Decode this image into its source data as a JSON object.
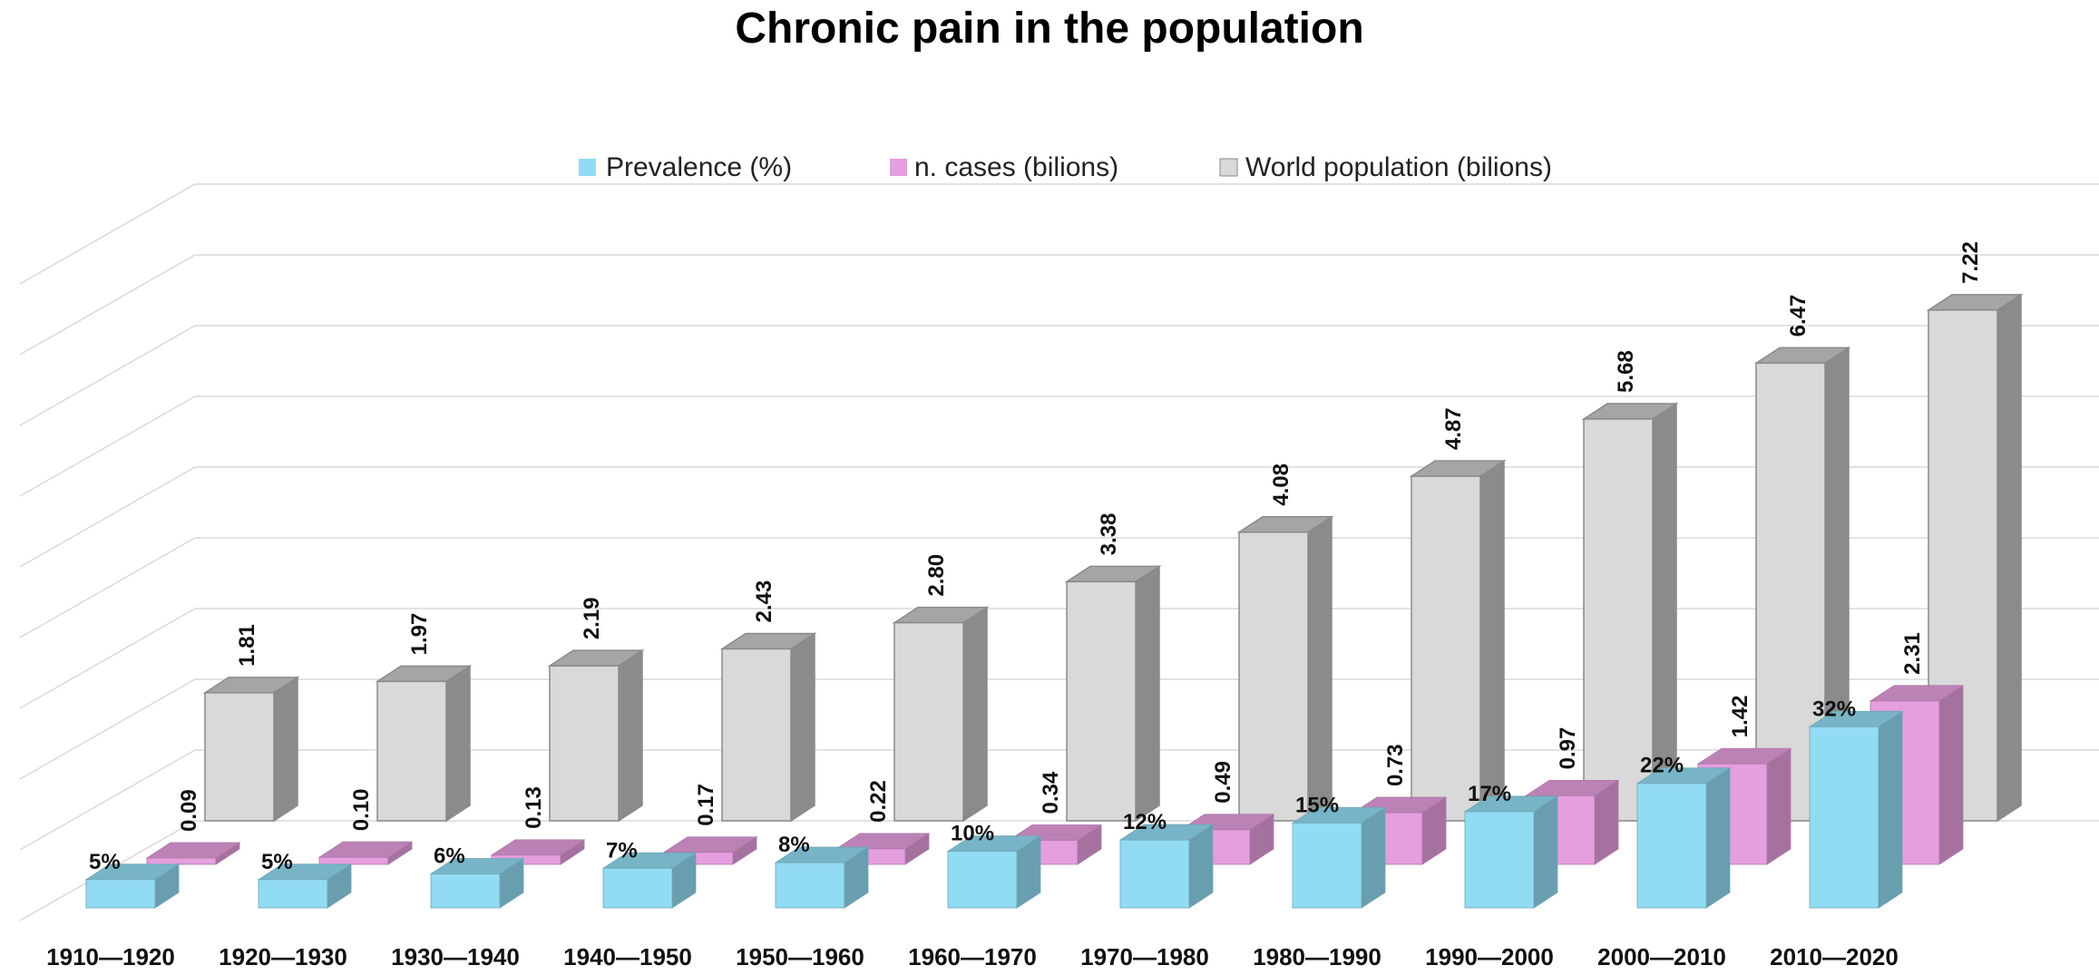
{
  "colors": {
    "prevalence": "#92dcf3",
    "cases": "#e59ede",
    "population": "#d9d9d9"
  },
  "chart_data": {
    "type": "bar",
    "variant": "3d-column",
    "title": "Chronic pain in the population",
    "legend_position": "top",
    "grid": true,
    "categories": [
      "1910—1920",
      "1920—1930",
      "1930—1940",
      "1940—1950",
      "1950—1960",
      "1960—1970",
      "1970—1980",
      "1980—1990",
      "1990—2000",
      "2000—2010",
      "2010—2020"
    ],
    "series": [
      {
        "name": "Prevalence (%)",
        "values": [
          5,
          5,
          6,
          7,
          8,
          10,
          12,
          15,
          17,
          22,
          32
        ],
        "labels": [
          "5%",
          "5%",
          "6%",
          "7%",
          "8%",
          "10%",
          "12%",
          "15%",
          "17%",
          "22%",
          "32%"
        ]
      },
      {
        "name": "n. cases (bilions)",
        "values": [
          0.09,
          0.1,
          0.13,
          0.17,
          0.22,
          0.34,
          0.49,
          0.73,
          0.97,
          1.42,
          2.31
        ],
        "labels": [
          "0.09",
          "0.10",
          "0.13",
          "0.17",
          "0.22",
          "0.34",
          "0.49",
          "0.73",
          "0.97",
          "1.42",
          "2.31"
        ]
      },
      {
        "name": "World population (bilions)",
        "values": [
          1.81,
          1.97,
          2.19,
          2.43,
          2.8,
          3.38,
          4.08,
          4.87,
          5.68,
          6.47,
          7.22
        ],
        "labels": [
          "1.81",
          "1.97",
          "2.19",
          "2.43",
          "2.80",
          "3.38",
          "4.08",
          "4.87",
          "5.68",
          "6.47",
          "7.22"
        ]
      }
    ]
  }
}
